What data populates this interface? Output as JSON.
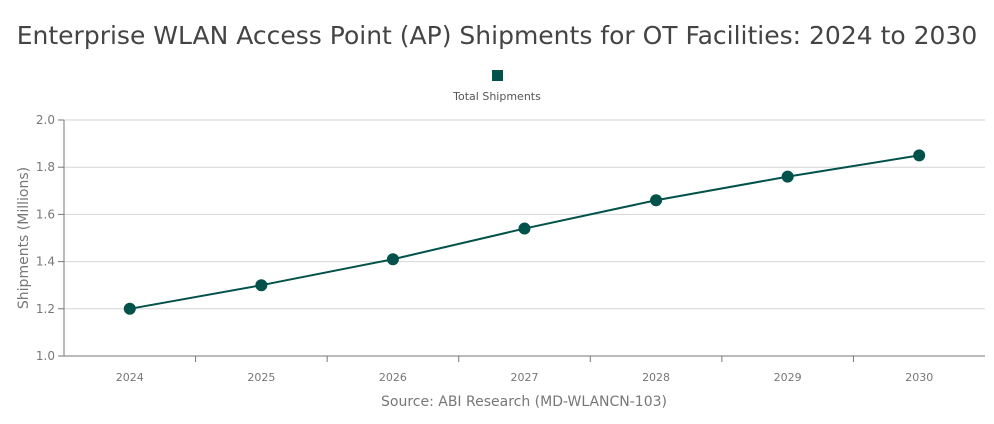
{
  "chart_data": {
    "type": "line",
    "title": "Enterprise WLAN Access Point (AP) Shipments for OT Facilities: 2024 to 2030",
    "xlabel": "Source: ABI Research (MD-WLANCN-103)",
    "ylabel": "Shipments (Millions)",
    "categories": [
      "2024",
      "2025",
      "2026",
      "2027",
      "2028",
      "2029",
      "2030"
    ],
    "series": [
      {
        "name": "Total Shipments",
        "values": [
          1.2,
          1.3,
          1.41,
          1.54,
          1.66,
          1.76,
          1.85
        ],
        "color": "#02514a"
      }
    ],
    "ylim": [
      1.0,
      2.0
    ],
    "yticks": [
      "1.0",
      "1.2",
      "1.4",
      "1.6",
      "1.8",
      "2.0"
    ],
    "grid": true,
    "legend_position": "top-center"
  }
}
